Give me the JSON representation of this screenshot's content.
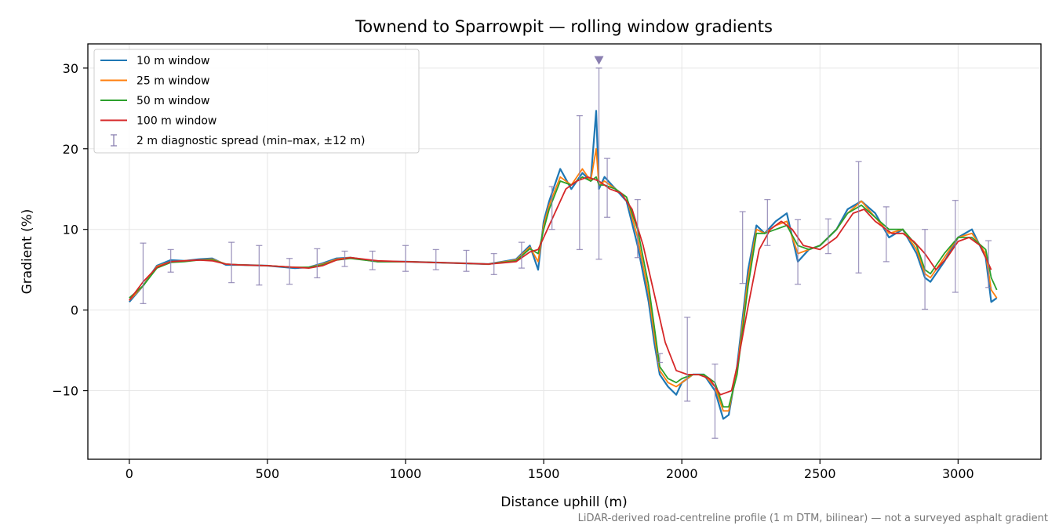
{
  "chart_data": {
    "type": "line",
    "title": "Townend to Sparrowpit — rolling window gradients",
    "xlabel": "Distance uphill (m)",
    "ylabel": "Gradient (%)",
    "xlim": [
      -150,
      3300
    ],
    "ylim": [
      -18.5,
      33
    ],
    "x_ticks": [
      0,
      500,
      1000,
      1500,
      2000,
      2500,
      3000
    ],
    "x_tick_labels": [
      "0",
      "500",
      "1000",
      "1500",
      "2000",
      "2500",
      "3000"
    ],
    "y_ticks": [
      -10,
      0,
      10,
      20,
      30
    ],
    "y_tick_labels": [
      "−10",
      "0",
      "10",
      "20",
      "30"
    ],
    "grid": true,
    "legend_position": "top-left",
    "footnote": "LiDAR-derived road-centreline profile (1 m DTM, bilinear) — not a surveyed asphalt gradient",
    "series": [
      {
        "name": "10 m window",
        "color": "#1f77b4",
        "x": [
          0,
          50,
          100,
          150,
          200,
          250,
          300,
          350,
          400,
          500,
          600,
          650,
          700,
          750,
          800,
          900,
          1000,
          1100,
          1200,
          1300,
          1400,
          1450,
          1480,
          1500,
          1520,
          1560,
          1600,
          1640,
          1670,
          1690,
          1700,
          1720,
          1760,
          1800,
          1840,
          1880,
          1900,
          1920,
          1950,
          1980,
          2000,
          2040,
          2080,
          2120,
          2150,
          2170,
          2200,
          2240,
          2270,
          2300,
          2340,
          2380,
          2420,
          2460,
          2500,
          2560,
          2600,
          2650,
          2700,
          2750,
          2800,
          2850,
          2880,
          2900,
          2950,
          3000,
          3050,
          3100,
          3120,
          3140
        ],
        "y": [
          1,
          3,
          5.5,
          6.2,
          6.1,
          6.3,
          6.4,
          5.6,
          5.6,
          5.5,
          5.2,
          5.3,
          5.8,
          6.4,
          6.5,
          6.0,
          6.0,
          5.9,
          5.8,
          5.7,
          6.3,
          8,
          5,
          11,
          13.5,
          17.5,
          15,
          17,
          16,
          24.7,
          15,
          16.5,
          15,
          13.5,
          8,
          1,
          -4,
          -8,
          -9.5,
          -10.5,
          -9,
          -8,
          -8,
          -10,
          -13.5,
          -13,
          -7,
          5,
          10.5,
          9.5,
          11,
          12,
          6,
          7.5,
          8,
          10,
          12.5,
          13.5,
          12,
          9,
          10,
          7,
          4,
          3.5,
          6,
          9,
          10,
          6.5,
          1,
          1.5
        ]
      },
      {
        "name": "25 m window",
        "color": "#ff7f0e",
        "x": [
          0,
          50,
          100,
          150,
          200,
          250,
          300,
          350,
          400,
          500,
          600,
          650,
          700,
          750,
          800,
          900,
          1000,
          1100,
          1200,
          1300,
          1400,
          1450,
          1480,
          1500,
          1520,
          1560,
          1600,
          1640,
          1670,
          1690,
          1700,
          1720,
          1760,
          1800,
          1840,
          1880,
          1900,
          1920,
          1950,
          1980,
          2000,
          2040,
          2080,
          2120,
          2150,
          2170,
          2200,
          2240,
          2270,
          2300,
          2340,
          2380,
          2420,
          2460,
          2500,
          2560,
          2600,
          2650,
          2700,
          2750,
          2800,
          2850,
          2880,
          2900,
          2950,
          3000,
          3050,
          3100,
          3120,
          3140
        ],
        "y": [
          1.2,
          3,
          5.4,
          6.0,
          6.1,
          6.2,
          6.3,
          5.7,
          5.6,
          5.5,
          5.3,
          5.3,
          5.7,
          6.3,
          6.5,
          6.0,
          6.0,
          5.9,
          5.8,
          5.7,
          6.2,
          7.8,
          6,
          10.5,
          13,
          16.5,
          15.5,
          17.5,
          16,
          20,
          15.5,
          16,
          15,
          14,
          9,
          2,
          -3,
          -7.5,
          -9,
          -9.5,
          -9,
          -8,
          -8,
          -9.5,
          -12.5,
          -12.5,
          -7.5,
          4,
          10,
          9.5,
          10.5,
          11,
          7,
          7.5,
          8,
          10,
          12,
          13.5,
          11.5,
          9.5,
          10,
          7.5,
          4.5,
          4,
          6.5,
          9,
          9.5,
          7,
          2.5,
          1.5
        ]
      },
      {
        "name": "50 m window",
        "color": "#2ca02c",
        "x": [
          0,
          50,
          100,
          150,
          200,
          250,
          300,
          350,
          400,
          500,
          600,
          650,
          700,
          750,
          800,
          900,
          1000,
          1100,
          1200,
          1300,
          1400,
          1450,
          1480,
          1500,
          1520,
          1560,
          1600,
          1640,
          1670,
          1690,
          1700,
          1720,
          1760,
          1800,
          1840,
          1880,
          1900,
          1920,
          1950,
          1980,
          2000,
          2040,
          2080,
          2120,
          2150,
          2170,
          2200,
          2240,
          2270,
          2300,
          2340,
          2380,
          2420,
          2460,
          2500,
          2560,
          2600,
          2650,
          2700,
          2750,
          2800,
          2850,
          2880,
          2900,
          2950,
          3000,
          3050,
          3100,
          3120,
          3140
        ],
        "y": [
          1.5,
          3,
          5.2,
          5.9,
          6.0,
          6.2,
          6.2,
          5.7,
          5.6,
          5.5,
          5.3,
          5.3,
          5.6,
          6.2,
          6.4,
          6.0,
          6.0,
          5.9,
          5.8,
          5.7,
          6.1,
          7.6,
          7,
          10,
          12.5,
          16,
          15.5,
          16.5,
          16,
          16.5,
          15.5,
          15.5,
          15,
          14,
          10,
          3,
          -2,
          -7,
          -8.5,
          -9,
          -8.5,
          -8,
          -8,
          -9,
          -12,
          -12,
          -8,
          3,
          9.5,
          9.5,
          10,
          10.5,
          8,
          7.5,
          8,
          10,
          12,
          13,
          11.5,
          10,
          10,
          8,
          5,
          4.5,
          7,
          9,
          9,
          7.5,
          4,
          2.5
        ]
      },
      {
        "name": "100 m window",
        "color": "#d62728",
        "x": [
          0,
          50,
          100,
          150,
          200,
          250,
          300,
          350,
          400,
          500,
          600,
          650,
          700,
          750,
          800,
          900,
          1000,
          1100,
          1200,
          1300,
          1400,
          1450,
          1480,
          1500,
          1540,
          1580,
          1620,
          1660,
          1700,
          1740,
          1780,
          1820,
          1860,
          1900,
          1940,
          1980,
          2020,
          2060,
          2100,
          2140,
          2180,
          2200,
          2240,
          2280,
          2320,
          2360,
          2400,
          2440,
          2500,
          2560,
          2620,
          2660,
          2700,
          2760,
          2800,
          2840,
          2880,
          2920,
          2960,
          3000,
          3040,
          3080,
          3120
        ],
        "y": [
          1.2,
          3.5,
          5.3,
          6.0,
          6.1,
          6.2,
          6.1,
          5.7,
          5.6,
          5.5,
          5.3,
          5.2,
          5.5,
          6.2,
          6.5,
          6.1,
          6.0,
          5.9,
          5.8,
          5.7,
          6.0,
          7.2,
          7.5,
          9,
          12,
          15,
          16,
          16.5,
          16,
          15,
          14.5,
          12.5,
          8,
          2,
          -4,
          -7.5,
          -8,
          -8,
          -8.5,
          -10.5,
          -10,
          -7,
          0.5,
          7.5,
          10,
          11,
          10,
          8,
          7.5,
          9,
          12,
          12.5,
          11,
          9.5,
          9.5,
          8.5,
          7,
          5,
          6.5,
          8.5,
          9,
          8,
          5
        ]
      }
    ],
    "diagnostic": {
      "name": "2 m diagnostic spread (min–max, ±12 m)",
      "color": "#8a7fb0",
      "x": [
        50,
        150,
        370,
        470,
        580,
        680,
        780,
        880,
        1000,
        1110,
        1220,
        1320,
        1420,
        1530,
        1630,
        1700,
        1730,
        1840,
        1920,
        2020,
        2120,
        2220,
        2310,
        2420,
        2530,
        2640,
        2740,
        2880,
        2990,
        3110
      ],
      "y": [
        5,
        6,
        6,
        5.5,
        5,
        6,
        6.5,
        6.5,
        6.5,
        6.5,
        6,
        6,
        7.5,
        12,
        16,
        15,
        14.5,
        11,
        -5,
        -6,
        -12,
        8,
        10,
        7.5,
        8.5,
        11.5,
        9.5,
        4,
        8,
        6
      ],
      "ymin": [
        0.8,
        4.7,
        3.4,
        3.1,
        3.2,
        4.0,
        5.4,
        5.0,
        4.8,
        5.0,
        4.8,
        4.4,
        5.2,
        10,
        7.5,
        6.3,
        11.5,
        6.5,
        -6.5,
        -11.3,
        -15.9,
        3.3,
        8,
        3.2,
        7,
        4.6,
        6,
        0.1,
        2.2,
        2.8
      ],
      "ymax": [
        8.3,
        7.5,
        8.4,
        8,
        6.4,
        7.6,
        7.3,
        7.3,
        8,
        7.5,
        7.4,
        7,
        8.4,
        15.3,
        24.1,
        30,
        18.8,
        13.7,
        -5.4,
        -0.9,
        -6.7,
        12.2,
        13.7,
        11.2,
        11.3,
        18.4,
        12.8,
        10,
        13.6,
        8.6
      ]
    },
    "annotation": {
      "x": 1700,
      "y": 31,
      "marker": "triangle-down",
      "color": "#8a7fb0"
    }
  }
}
